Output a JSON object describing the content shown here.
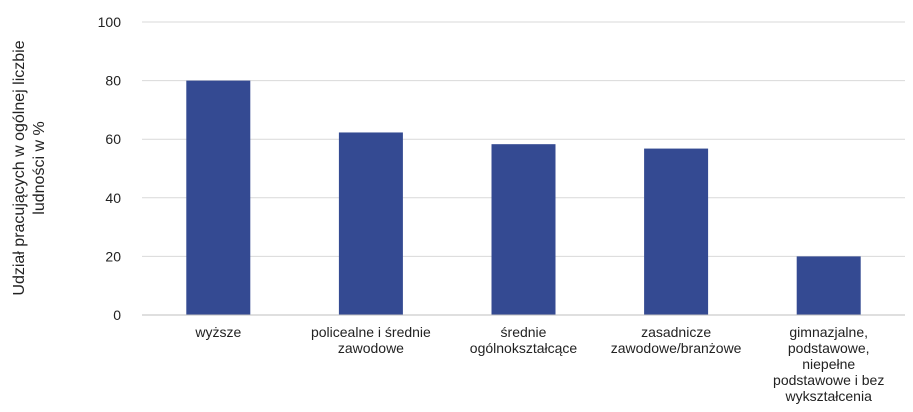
{
  "colors": {
    "bar": "#344a92"
  },
  "chart_data": {
    "type": "bar",
    "title": "",
    "xlabel": "",
    "ylabel": "Udział pracujących w ogólnej liczbie ludności w %",
    "ylabel_lines": [
      "Udział pracujących w ogólnej liczbie",
      "ludności w %"
    ],
    "ylim": [
      0,
      100
    ],
    "yticks": [
      0,
      20,
      40,
      60,
      80,
      100
    ],
    "grid": true,
    "legend": "none",
    "categories": [
      "wyższe",
      "policealne i średnie zawodowe",
      "średnie ogólnokształcące",
      "zasadnicze zawodowe/branżowe",
      "gimnazjalne, podstawowe, niepełne podstawowe i bez wykształcenia"
    ],
    "category_lines": [
      [
        "wyższe"
      ],
      [
        "policealne i średnie",
        "zawodowe"
      ],
      [
        "średnie",
        "ogólnokształcące"
      ],
      [
        "zasadnicze",
        "zawodowe/branżowe"
      ],
      [
        "gimnazjalne,",
        "podstawowe,",
        "niepełne",
        "podstawowe i bez",
        "wykształcenia"
      ]
    ],
    "values": [
      80.0,
      62.3,
      58.3,
      56.8,
      20.0
    ]
  }
}
